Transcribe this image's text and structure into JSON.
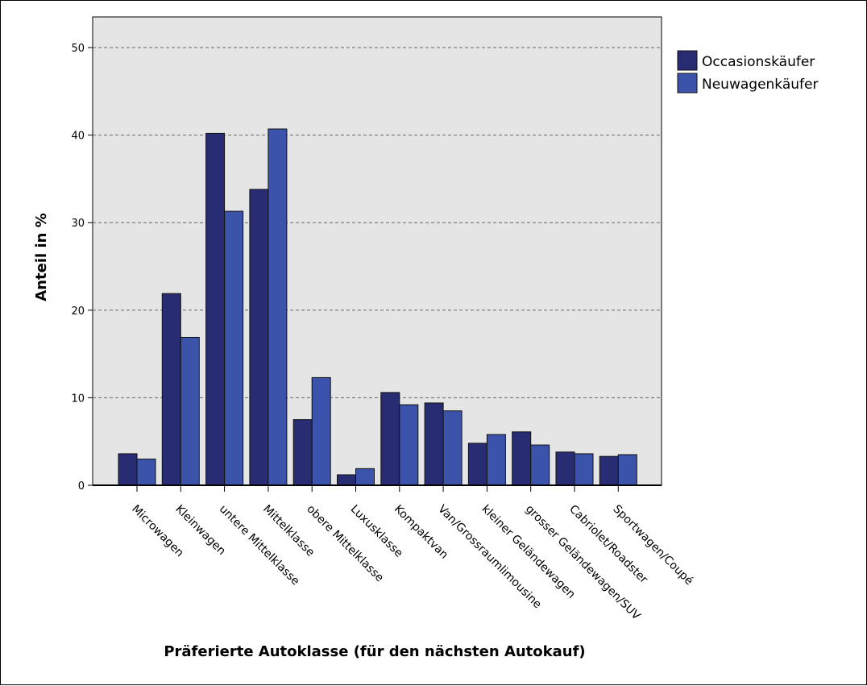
{
  "chart_data": {
    "type": "bar",
    "xlabel": "Präferierte Autoklasse (für den nächsten Autokauf)",
    "ylabel": "Anteil in %",
    "ylim": [
      0,
      50
    ],
    "yticks": [
      "0",
      "10",
      "20",
      "30",
      "40",
      "50"
    ],
    "grid": true,
    "legend_position": "top-right",
    "categories": [
      "Microwagen",
      "Kleinwagen",
      "untere Mittelklasse",
      "Mittelklasse",
      "obere Mittelklasse",
      "Luxusklasse",
      "Kompaktvan",
      "Van/Grossraumlimousine",
      "kleiner Geländewagen",
      "grosser Geländewagen/SUV",
      "Cabriolet/Roadster",
      "Sportwagen/Coupé"
    ],
    "series": [
      {
        "name": "Occasionskäufer",
        "color": "#282c72",
        "values": [
          3.6,
          21.9,
          40.2,
          33.8,
          7.5,
          1.2,
          10.6,
          9.4,
          4.8,
          6.1,
          3.8,
          3.3
        ]
      },
      {
        "name": "Neuwagenkäufer",
        "color": "#3b53aa",
        "values": [
          3.0,
          16.9,
          31.3,
          40.7,
          12.3,
          1.9,
          9.2,
          8.5,
          5.8,
          4.6,
          3.6,
          3.5
        ]
      }
    ],
    "plot_background": "#e5e5e5"
  }
}
